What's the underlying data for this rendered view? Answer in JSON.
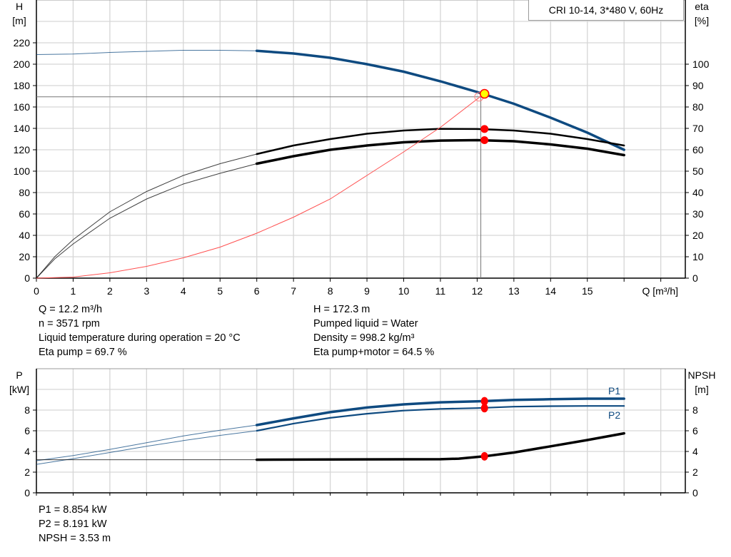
{
  "chart_data": [
    {
      "type": "line",
      "title": "CRI 10-14, 3*480 V, 60Hz",
      "xlabel": "Q [m³/h]",
      "ylabel_left": [
        "H",
        "[m]"
      ],
      "ylabel_right": [
        "eta",
        "[%]"
      ],
      "xlim": [
        0,
        17.5
      ],
      "ylim_left": [
        0,
        260
      ],
      "ylim_right": [
        0,
        130
      ],
      "x_ticks": [
        "0",
        "1",
        "2",
        "3",
        "4",
        "5",
        "6",
        "7",
        "8",
        "9",
        "10",
        "11",
        "12",
        "13",
        "14",
        "15"
      ],
      "y_ticks_left": [
        "0",
        "20",
        "40",
        "60",
        "80",
        "100",
        "120",
        "140",
        "160",
        "180",
        "200",
        "220"
      ],
      "y_ticks_right": [
        "0",
        "10",
        "20",
        "30",
        "40",
        "50",
        "60",
        "70",
        "80",
        "90",
        "100"
      ],
      "grid": true,
      "series": [
        {
          "key": "H",
          "axis": "left",
          "color": "#0e4a80",
          "thin_until": 6,
          "x": [
            0,
            1,
            2,
            3,
            4,
            5,
            6,
            7,
            8,
            9,
            10,
            11,
            12,
            13,
            14,
            15,
            16
          ],
          "y": [
            209,
            209.5,
            211,
            212,
            213,
            213,
            212.5,
            210,
            206,
            200,
            193,
            184,
            174,
            163,
            150,
            136,
            120
          ]
        },
        {
          "key": "eta_pump",
          "axis": "right",
          "color": "#000000",
          "thin_until": 6,
          "x": [
            0,
            0.5,
            1,
            2,
            3,
            4,
            5,
            6,
            7,
            8,
            9,
            10,
            11,
            12,
            13,
            14,
            15,
            16
          ],
          "y": [
            0,
            10,
            18,
            31,
            40.5,
            48,
            53.5,
            58,
            62,
            65,
            67.5,
            69,
            69.8,
            69.7,
            69,
            67.5,
            65,
            62
          ]
        },
        {
          "key": "eta_pump_motor",
          "axis": "right",
          "color": "#000000",
          "thin_until": 6,
          "x": [
            0,
            0.5,
            1,
            2,
            3,
            4,
            5,
            6,
            7,
            8,
            9,
            10,
            11,
            12,
            13,
            14,
            15,
            16
          ],
          "y": [
            0,
            9,
            16,
            28,
            37,
            44,
            49,
            53.5,
            57,
            60,
            62,
            63.5,
            64.3,
            64.5,
            64,
            62.5,
            60.5,
            57.5
          ]
        },
        {
          "key": "system_curve",
          "axis": "left",
          "color": "#ff5050",
          "x": [
            0,
            1,
            2,
            3,
            4,
            5,
            6,
            7,
            8,
            9,
            10,
            11,
            12.1
          ],
          "y": [
            0,
            1,
            5,
            11,
            19,
            29,
            42,
            57,
            74,
            96,
            118,
            141,
            170
          ]
        }
      ],
      "operating_point": {
        "Q": 12.2,
        "H": 172.3,
        "eta_pump": 69.7,
        "eta_pump_motor": 64.5
      },
      "info": {
        "q": "Q = 12.2 m³/h",
        "n": "n = 3571 rpm",
        "temp": "Liquid temperature during operation = 20 °C",
        "eta_pump": "Eta pump = 69.7 %",
        "h": "H = 172.3 m",
        "liquid": "Pumped liquid = Water",
        "density": "Density = 998.2 kg/m³",
        "eta_total": "Eta pump+motor = 64.5 %"
      }
    },
    {
      "type": "line",
      "ylabel_left": [
        "P",
        "[kW]"
      ],
      "ylabel_right": [
        "NPSH",
        "[m]"
      ],
      "xlim": [
        0,
        17.5
      ],
      "ylim_left": [
        0,
        10
      ],
      "ylim_right": [
        0,
        10
      ],
      "y_ticks_left": [
        "0",
        "2",
        "4",
        "6",
        "8"
      ],
      "y_ticks_right": [
        "0",
        "2",
        "4",
        "6",
        "8"
      ],
      "grid": true,
      "series": [
        {
          "key": "P1",
          "name": "P1",
          "color": "#0e4a80",
          "thin_until": 6,
          "x": [
            0,
            1,
            2,
            3,
            4,
            5,
            6,
            7,
            8,
            9,
            10,
            11,
            12,
            13,
            14,
            15,
            16
          ],
          "y": [
            3.1,
            3.6,
            4.2,
            4.85,
            5.5,
            6.05,
            6.55,
            7.2,
            7.8,
            8.25,
            8.55,
            8.75,
            8.85,
            8.98,
            9.05,
            9.1,
            9.1
          ]
        },
        {
          "key": "P2",
          "name": "P2",
          "color": "#0e4a80",
          "thin_until": 6,
          "x": [
            0,
            1,
            2,
            3,
            4,
            5,
            6,
            7,
            8,
            9,
            10,
            11,
            12,
            13,
            14,
            15,
            16
          ],
          "y": [
            2.75,
            3.3,
            3.9,
            4.5,
            5.05,
            5.55,
            6.0,
            6.7,
            7.25,
            7.65,
            7.95,
            8.12,
            8.19,
            8.33,
            8.38,
            8.4,
            8.4
          ]
        },
        {
          "key": "NPSH",
          "color": "#000000",
          "thin_until": 6,
          "x": [
            0,
            2,
            4,
            6,
            8,
            10,
            11,
            11.5,
            12.2,
            13,
            14,
            15,
            16
          ],
          "y": [
            3.2,
            3.2,
            3.2,
            3.2,
            3.22,
            3.24,
            3.25,
            3.3,
            3.53,
            3.9,
            4.5,
            5.1,
            5.75
          ]
        }
      ],
      "operating_point": {
        "Q": 12.2,
        "P1": 8.854,
        "P2": 8.191,
        "NPSH": 3.53
      },
      "info": {
        "p1": "P1 = 8.854 kW",
        "p2": "P2 = 8.191 kW",
        "npsh": "NPSH = 3.53 m"
      }
    }
  ]
}
